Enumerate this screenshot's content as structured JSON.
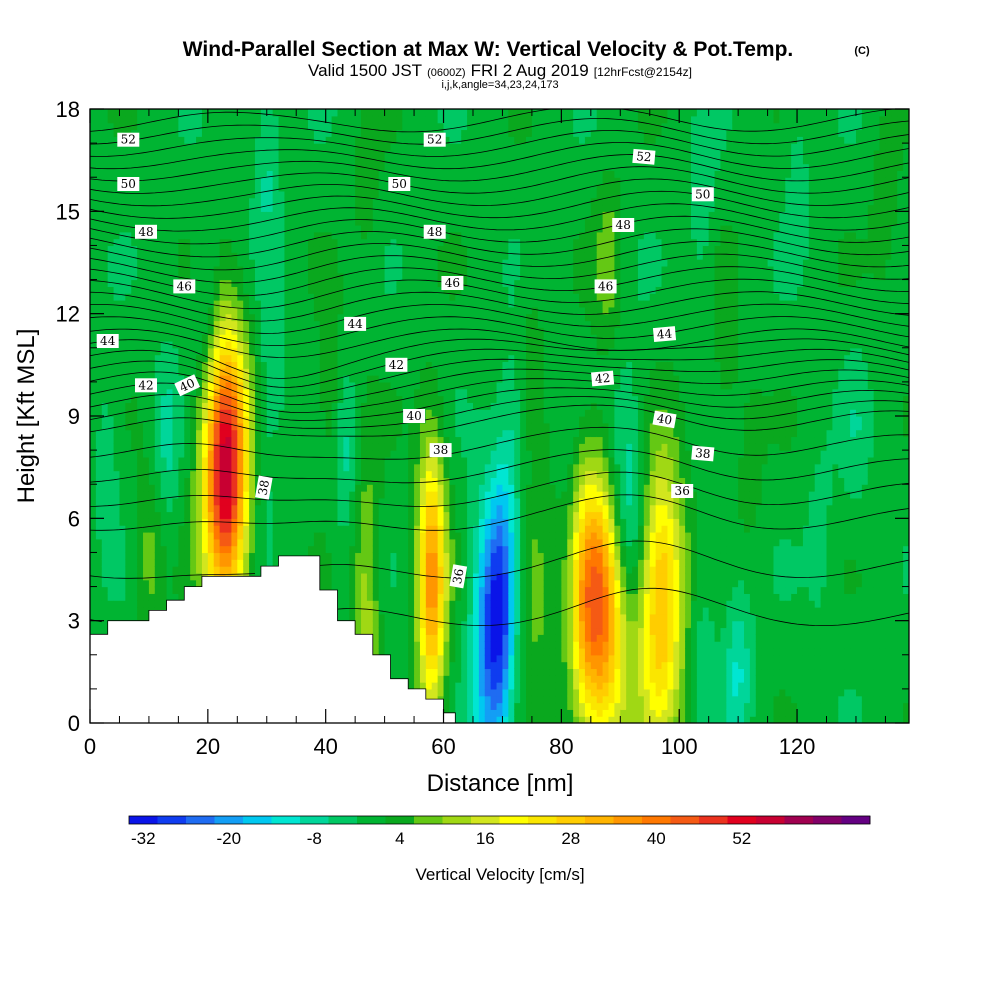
{
  "chart_data": {
    "type": "heatmap",
    "title": "Wind-Parallel Section at Max W: Vertical Velocity & Pot.Temp.",
    "title_mark": "(C)",
    "subtitle": {
      "valid": "Valid 1500 JST",
      "utc": "(0600Z)",
      "date": "FRI 2 Aug 2019",
      "forecast": "[12hrFcst@2154z]"
    },
    "indices": "i,j,k,angle=34,23,24,173",
    "xlabel": "Distance [nm]",
    "ylabel": "Height [Kft MSL]",
    "xlim": [
      0,
      139
    ],
    "ylim": [
      0,
      18
    ],
    "x_ticks": [
      0,
      20,
      40,
      60,
      80,
      100,
      120
    ],
    "y_ticks": [
      0,
      3,
      6,
      9,
      12,
      15,
      18
    ],
    "colorbar": {
      "label": "Vertical Velocity [cm/s]",
      "min": -34,
      "step": 4,
      "tick_labels": [
        -32,
        -20,
        -8,
        4,
        16,
        28,
        40,
        52
      ],
      "colors": [
        "#0a14e8",
        "#0f3cf0",
        "#1f6cf2",
        "#139ef5",
        "#00c8f0",
        "#00e6d2",
        "#00d69a",
        "#00c864",
        "#00b432",
        "#0aa81e",
        "#64c814",
        "#a0d814",
        "#d2e61e",
        "#ffff00",
        "#fae600",
        "#ffcd00",
        "#ffb400",
        "#ff9600",
        "#ff7800",
        "#f55a14",
        "#eb321e",
        "#e1001e",
        "#c80032",
        "#a00050",
        "#820068",
        "#640082"
      ]
    },
    "background_value": 0,
    "velocity_features": [
      {
        "x": 3,
        "z": 8.0,
        "value": -5
      },
      {
        "x": 23,
        "z": 7.3,
        "value": 25
      },
      {
        "x": 23,
        "z": 7.5,
        "value": 33
      },
      {
        "x": 10,
        "z": 4.8,
        "value": 8
      },
      {
        "x": 20,
        "z": 12.0,
        "value": -8
      },
      {
        "x": 31,
        "z": 10.8,
        "value": -6
      },
      {
        "x": 30,
        "z": 16.5,
        "value": -7
      },
      {
        "x": 29,
        "z": 7.4,
        "value": -5
      },
      {
        "x": 13,
        "z": 8.5,
        "value": -7
      },
      {
        "x": 41,
        "z": 9.4,
        "value": 8
      },
      {
        "x": 43,
        "z": 8.0,
        "value": -8
      },
      {
        "x": 47,
        "z": 3.8,
        "value": 12
      },
      {
        "x": 58,
        "z": 4.0,
        "value": 16
      },
      {
        "x": 58,
        "z": 4.3,
        "value": 20
      },
      {
        "x": 68,
        "z": 2.5,
        "value": -25
      },
      {
        "x": 70,
        "z": 3.8,
        "value": -14
      },
      {
        "x": 75,
        "z": 4.2,
        "value": 8
      },
      {
        "x": 81,
        "z": 4.0,
        "value": -12
      },
      {
        "x": 87,
        "z": 3.5,
        "value": 50
      },
      {
        "x": 91,
        "z": 5.0,
        "value": -30
      },
      {
        "x": 97,
        "z": 3.7,
        "value": 30
      },
      {
        "x": 104,
        "z": 2.5,
        "value": -5
      },
      {
        "x": 110,
        "z": 1.6,
        "value": -10
      },
      {
        "x": 124,
        "z": 5.5,
        "value": -4
      },
      {
        "x": 130,
        "z": 8.5,
        "value": -4
      },
      {
        "x": 88,
        "z": 13.5,
        "value": 8
      },
      {
        "x": 75,
        "z": 11.0,
        "value": 4
      },
      {
        "x": 108,
        "z": 11.0,
        "value": 5
      },
      {
        "x": 47,
        "z": 15.5,
        "value": 4
      },
      {
        "x": 104,
        "z": 15.0,
        "value": -5
      },
      {
        "x": 135,
        "z": 15.5,
        "value": 5
      },
      {
        "x": 72,
        "z": 8.5,
        "value": -6
      },
      {
        "x": 112,
        "z": 7.5,
        "value": 4
      },
      {
        "x": 120,
        "z": 16.5,
        "value": -4
      }
    ],
    "terrain": [
      [
        0,
        2.6
      ],
      [
        3,
        2.6
      ],
      [
        3,
        3.0
      ],
      [
        10,
        3.0
      ],
      [
        10,
        3.3
      ],
      [
        13,
        3.3
      ],
      [
        13,
        3.6
      ],
      [
        16,
        3.6
      ],
      [
        16,
        4.0
      ],
      [
        19,
        4.0
      ],
      [
        19,
        4.3
      ],
      [
        29,
        4.3
      ],
      [
        29,
        4.6
      ],
      [
        32,
        4.6
      ],
      [
        32,
        4.9
      ],
      [
        39,
        4.9
      ],
      [
        39,
        3.9
      ],
      [
        42,
        3.9
      ],
      [
        42,
        3.0
      ],
      [
        45,
        3.0
      ],
      [
        45,
        2.6
      ],
      [
        48,
        2.6
      ],
      [
        48,
        2.0
      ],
      [
        51,
        2.0
      ],
      [
        51,
        1.3
      ],
      [
        54,
        1.3
      ],
      [
        54,
        1.0
      ],
      [
        57,
        1.0
      ],
      [
        57,
        0.7
      ],
      [
        60,
        0.7
      ],
      [
        60,
        0.3
      ],
      [
        62,
        0.3
      ],
      [
        62,
        0
      ]
    ],
    "isentropes": [
      53,
      52.5,
      52,
      51.5,
      51,
      50.5,
      50,
      49.5,
      49,
      48.5,
      48,
      47.5,
      47,
      46.5,
      46,
      45.5,
      45,
      44.5,
      44,
      43.5,
      43,
      42.5,
      42,
      41.5,
      41,
      40.5,
      40,
      39.5,
      39,
      38.5,
      38,
      37,
      36
    ],
    "isentrope_labels": [
      {
        "text": "52",
        "x": 6.5,
        "z": 17.1,
        "angle": 0
      },
      {
        "text": "52",
        "x": 58.5,
        "z": 17.1,
        "angle": 0
      },
      {
        "text": "52",
        "x": 94,
        "z": 16.6,
        "angle": 5
      },
      {
        "text": "50",
        "x": 6.5,
        "z": 15.8,
        "angle": 0
      },
      {
        "text": "50",
        "x": 52.5,
        "z": 15.8,
        "angle": 0
      },
      {
        "text": "50",
        "x": 104,
        "z": 15.5,
        "angle": 0
      },
      {
        "text": "48",
        "x": 9.5,
        "z": 14.4,
        "angle": 0
      },
      {
        "text": "48",
        "x": 58.5,
        "z": 14.4,
        "angle": 0
      },
      {
        "text": "48",
        "x": 90.5,
        "z": 14.6,
        "angle": 0
      },
      {
        "text": "46",
        "x": 16,
        "z": 12.8,
        "angle": 0
      },
      {
        "text": "46",
        "x": 61.5,
        "z": 12.9,
        "angle": 0
      },
      {
        "text": "46",
        "x": 87.5,
        "z": 12.8,
        "angle": 0
      },
      {
        "text": "44",
        "x": 3,
        "z": 11.2,
        "angle": 0
      },
      {
        "text": "44",
        "x": 45,
        "z": 11.7,
        "angle": 0
      },
      {
        "text": "44",
        "x": 97.5,
        "z": 11.4,
        "angle": -5
      },
      {
        "text": "42",
        "x": 9.5,
        "z": 9.9,
        "angle": 0
      },
      {
        "text": "42",
        "x": 52,
        "z": 10.5,
        "angle": 0
      },
      {
        "text": "42",
        "x": 87,
        "z": 10.1,
        "angle": -5
      },
      {
        "text": "40",
        "x": 16.5,
        "z": 9.9,
        "angle": -25
      },
      {
        "text": "40",
        "x": 55,
        "z": 9.0,
        "angle": 0
      },
      {
        "text": "40",
        "x": 97.5,
        "z": 8.9,
        "angle": 10
      },
      {
        "text": "38",
        "x": 59.5,
        "z": 8.0,
        "angle": 0
      },
      {
        "text": "38",
        "x": 104,
        "z": 7.9,
        "angle": 5
      },
      {
        "text": "38",
        "x": 29.5,
        "z": 6.9,
        "angle": -80
      },
      {
        "text": "36",
        "x": 100.5,
        "z": 6.8,
        "angle": 0
      },
      {
        "text": "36",
        "x": 62.5,
        "z": 4.3,
        "angle": -80
      }
    ]
  }
}
